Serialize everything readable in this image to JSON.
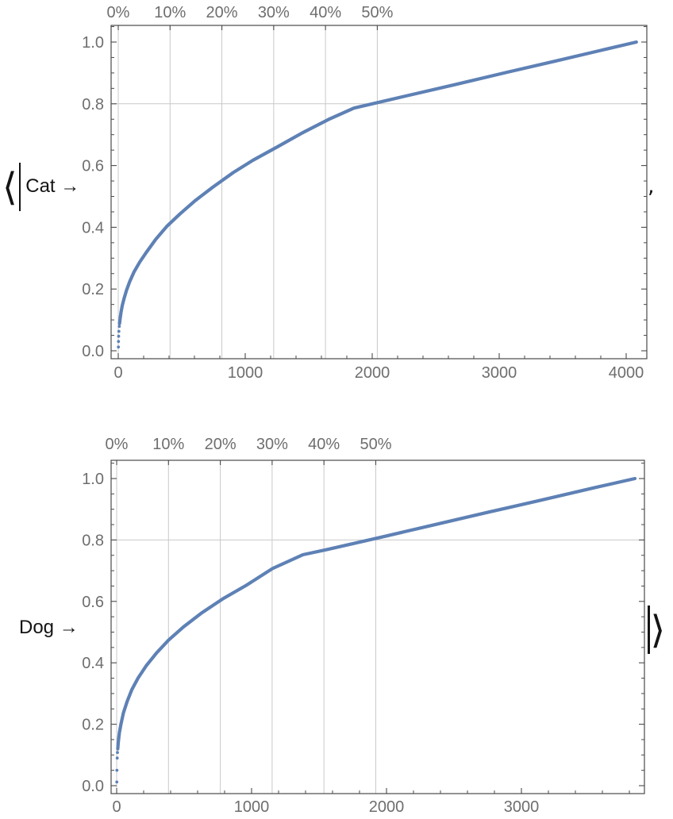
{
  "decorations": {
    "bra": "⟨",
    "bar": "|",
    "ket": "⟩",
    "separator": ","
  },
  "colors": {
    "curve": "#5e81b5",
    "gridline": "#c9c9c9",
    "frame": "#4a4a4a",
    "tick_text": "#6e6e6e",
    "label_text": "#141414",
    "background": "#ffffff"
  },
  "chart_data": [
    {
      "type": "line",
      "label": "Cat →",
      "series_color": "#5e81b5",
      "n_points": 4080,
      "top_axis": {
        "tick_labels": [
          "0%",
          "10%",
          "20%",
          "30%",
          "40%",
          "50%"
        ],
        "tick_percents": [
          0,
          10,
          20,
          30,
          40,
          50
        ]
      },
      "x_axis": {
        "tick_labels": [
          "0",
          "1000",
          "2000",
          "3000",
          "4000"
        ],
        "tick_values": [
          0,
          1000,
          2000,
          3000,
          4000
        ],
        "minor_step": 200,
        "range": [
          -60,
          4160
        ]
      },
      "y_axis": {
        "tick_labels": [
          "0.0",
          "0.2",
          "0.4",
          "0.6",
          "0.8",
          "1.0"
        ],
        "tick_values": [
          0,
          0.2,
          0.4,
          0.6,
          0.8,
          1.0
        ],
        "minor_step": 0.05,
        "range": [
          -0.026,
          1.054
        ]
      },
      "gridlines": {
        "vertical_at_percents": [
          0,
          10,
          20,
          30,
          40,
          50
        ],
        "horizontal_at_values": [
          0.8
        ]
      },
      "start_dots": [
        [
          1,
          0.012
        ],
        [
          2,
          0.03
        ],
        [
          3,
          0.047
        ],
        [
          5,
          0.063
        ],
        [
          8,
          0.079
        ]
      ],
      "anchors": [
        [
          10,
          0.088
        ],
        [
          15,
          0.105
        ],
        [
          22,
          0.125
        ],
        [
          32,
          0.147
        ],
        [
          46,
          0.17
        ],
        [
          65,
          0.196
        ],
        [
          90,
          0.224
        ],
        [
          125,
          0.256
        ],
        [
          170,
          0.288
        ],
        [
          225,
          0.321
        ],
        [
          295,
          0.361
        ],
        [
          385,
          0.404
        ],
        [
          485,
          0.443
        ],
        [
          605,
          0.486
        ],
        [
          745,
          0.53
        ],
        [
          905,
          0.577
        ],
        [
          1060,
          0.617
        ],
        [
          1255,
          0.661
        ],
        [
          1455,
          0.707
        ],
        [
          1655,
          0.749
        ],
        [
          1856,
          0.786
        ],
        [
          2250,
          0.824
        ],
        [
          2650,
          0.862
        ],
        [
          3050,
          0.901
        ],
        [
          3450,
          0.939
        ],
        [
          3800,
          0.973
        ],
        [
          4080,
          1.0
        ]
      ]
    },
    {
      "type": "line",
      "label": "Dog →",
      "series_color": "#5e81b5",
      "n_points": 3841,
      "top_axis": {
        "tick_labels": [
          "0%",
          "10%",
          "20%",
          "30%",
          "40%",
          "50%"
        ],
        "tick_percents": [
          0,
          10,
          20,
          30,
          40,
          50
        ]
      },
      "x_axis": {
        "tick_labels": [
          "0",
          "1000",
          "2000",
          "3000"
        ],
        "tick_values": [
          0,
          1000,
          2000,
          3000
        ],
        "minor_step": 200,
        "range": [
          -45,
          3915
        ]
      },
      "y_axis": {
        "tick_labels": [
          "0.0",
          "0.2",
          "0.4",
          "0.6",
          "0.8",
          "1.0"
        ],
        "tick_values": [
          0,
          0.2,
          0.4,
          0.6,
          0.8,
          1.0
        ],
        "minor_step": 0.05,
        "range": [
          -0.026,
          1.059
        ]
      },
      "gridlines": {
        "vertical_at_percents": [
          0,
          10,
          20,
          30,
          40,
          50
        ],
        "horizontal_at_values": [
          0.8
        ]
      },
      "start_dots": [
        [
          1,
          0.012
        ],
        [
          2,
          0.05
        ],
        [
          4,
          0.09
        ],
        [
          6,
          0.108
        ]
      ],
      "anchors": [
        [
          8,
          0.12
        ],
        [
          12,
          0.14
        ],
        [
          20,
          0.172
        ],
        [
          32,
          0.2
        ],
        [
          50,
          0.237
        ],
        [
          78,
          0.275
        ],
        [
          112,
          0.312
        ],
        [
          158,
          0.35
        ],
        [
          218,
          0.39
        ],
        [
          295,
          0.432
        ],
        [
          385,
          0.474
        ],
        [
          495,
          0.517
        ],
        [
          625,
          0.561
        ],
        [
          785,
          0.608
        ],
        [
          955,
          0.651
        ],
        [
          1155,
          0.707
        ],
        [
          1380,
          0.752
        ],
        [
          1560,
          0.769
        ],
        [
          1950,
          0.808
        ],
        [
          2350,
          0.849
        ],
        [
          2750,
          0.89
        ],
        [
          3150,
          0.93
        ],
        [
          3550,
          0.971
        ],
        [
          3841,
          1.0
        ]
      ]
    }
  ]
}
